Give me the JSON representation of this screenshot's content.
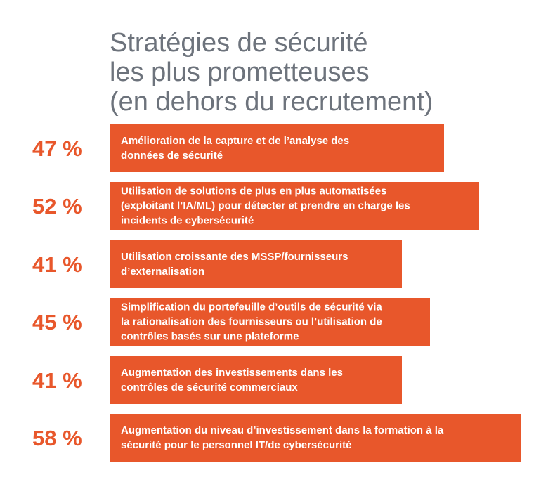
{
  "chart_data": {
    "type": "bar",
    "orientation": "horizontal",
    "title_lines": [
      "Stratégies de sécurité",
      "les plus prometteuses",
      "(en dehors du recrutement)"
    ],
    "unit": "%",
    "bar_color": "#e8572b",
    "label_color": "#e8572b",
    "title_color": "#6d737c",
    "categories": [
      [
        "Amélioration de la capture et de l’analyse des",
        "données de sécurité"
      ],
      [
        "Utilisation de solutions de plus en plus automatisées",
        "(exploitant l’IA/ML) pour détecter et prendre en charge les",
        "incidents de cybersécurité"
      ],
      [
        "Utilisation croissante des MSSP/fournisseurs",
        "d’externalisation"
      ],
      [
        "Simplification du portefeuille d’outils de sécurité via",
        "la rationalisation des fournisseurs ou l’utilisation de",
        "contrôles basés sur une plateforme"
      ],
      [
        "Augmentation des investissements dans les",
        "contrôles de sécurité commerciaux"
      ],
      [
        "Augmentation du niveau d’investissement dans la formation à la",
        "sécurité pour le personnel IT/de cybersécurité"
      ]
    ],
    "values": [
      47,
      52,
      41,
      45,
      41,
      58
    ],
    "value_labels": [
      "47 %",
      "52 %",
      "41 %",
      "45 %",
      "41 %",
      "58 %"
    ]
  }
}
